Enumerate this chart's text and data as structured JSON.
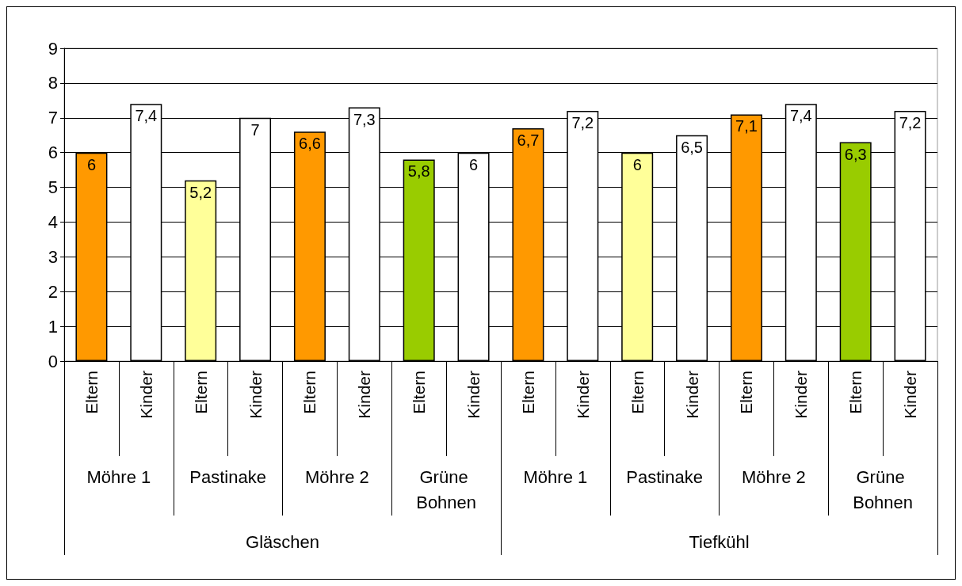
{
  "chart_data": {
    "type": "bar",
    "categories": [
      "Eltern",
      "Kinder",
      "Eltern",
      "Kinder",
      "Eltern",
      "Kinder",
      "Eltern",
      "Kinder",
      "Eltern",
      "Kinder",
      "Eltern",
      "Kinder",
      "Eltern",
      "Kinder",
      "Eltern",
      "Kinder"
    ],
    "values": [
      6,
      7.4,
      5.2,
      7,
      6.6,
      7.3,
      5.8,
      6,
      6.7,
      7.2,
      6,
      6.5,
      7.1,
      7.4,
      6.3,
      7.2
    ],
    "colors": [
      "#ff9900",
      "#ffffff",
      "#ffff99",
      "#ffffff",
      "#ff9900",
      "#ffffff",
      "#99cc00",
      "#ffffff",
      "#ff9900",
      "#ffffff",
      "#ffff99",
      "#ffffff",
      "#ff9900",
      "#ffffff",
      "#99cc00",
      "#ffffff"
    ],
    "annotations": [
      "Möhre 1",
      "Pastinake",
      "Möhre 2",
      "Grüne Bohnen",
      "Möhre 1",
      "Pastinake",
      "Möhre 2",
      "Grüne Bohnen",
      "Gläschen",
      "Tiefkühl"
    ],
    "ylim": [
      0,
      9
    ],
    "yticks": [
      0,
      1,
      2,
      3,
      4,
      5,
      6,
      7,
      8,
      9
    ],
    "value_labels": [
      "6",
      "7,4",
      "5,2",
      "7",
      "6,6",
      "7,3",
      "5,8",
      "6",
      "6,7",
      "7,2",
      "6",
      "6,5",
      "7,1",
      "7,4",
      "6,3",
      "7,2"
    ],
    "grid": true
  }
}
